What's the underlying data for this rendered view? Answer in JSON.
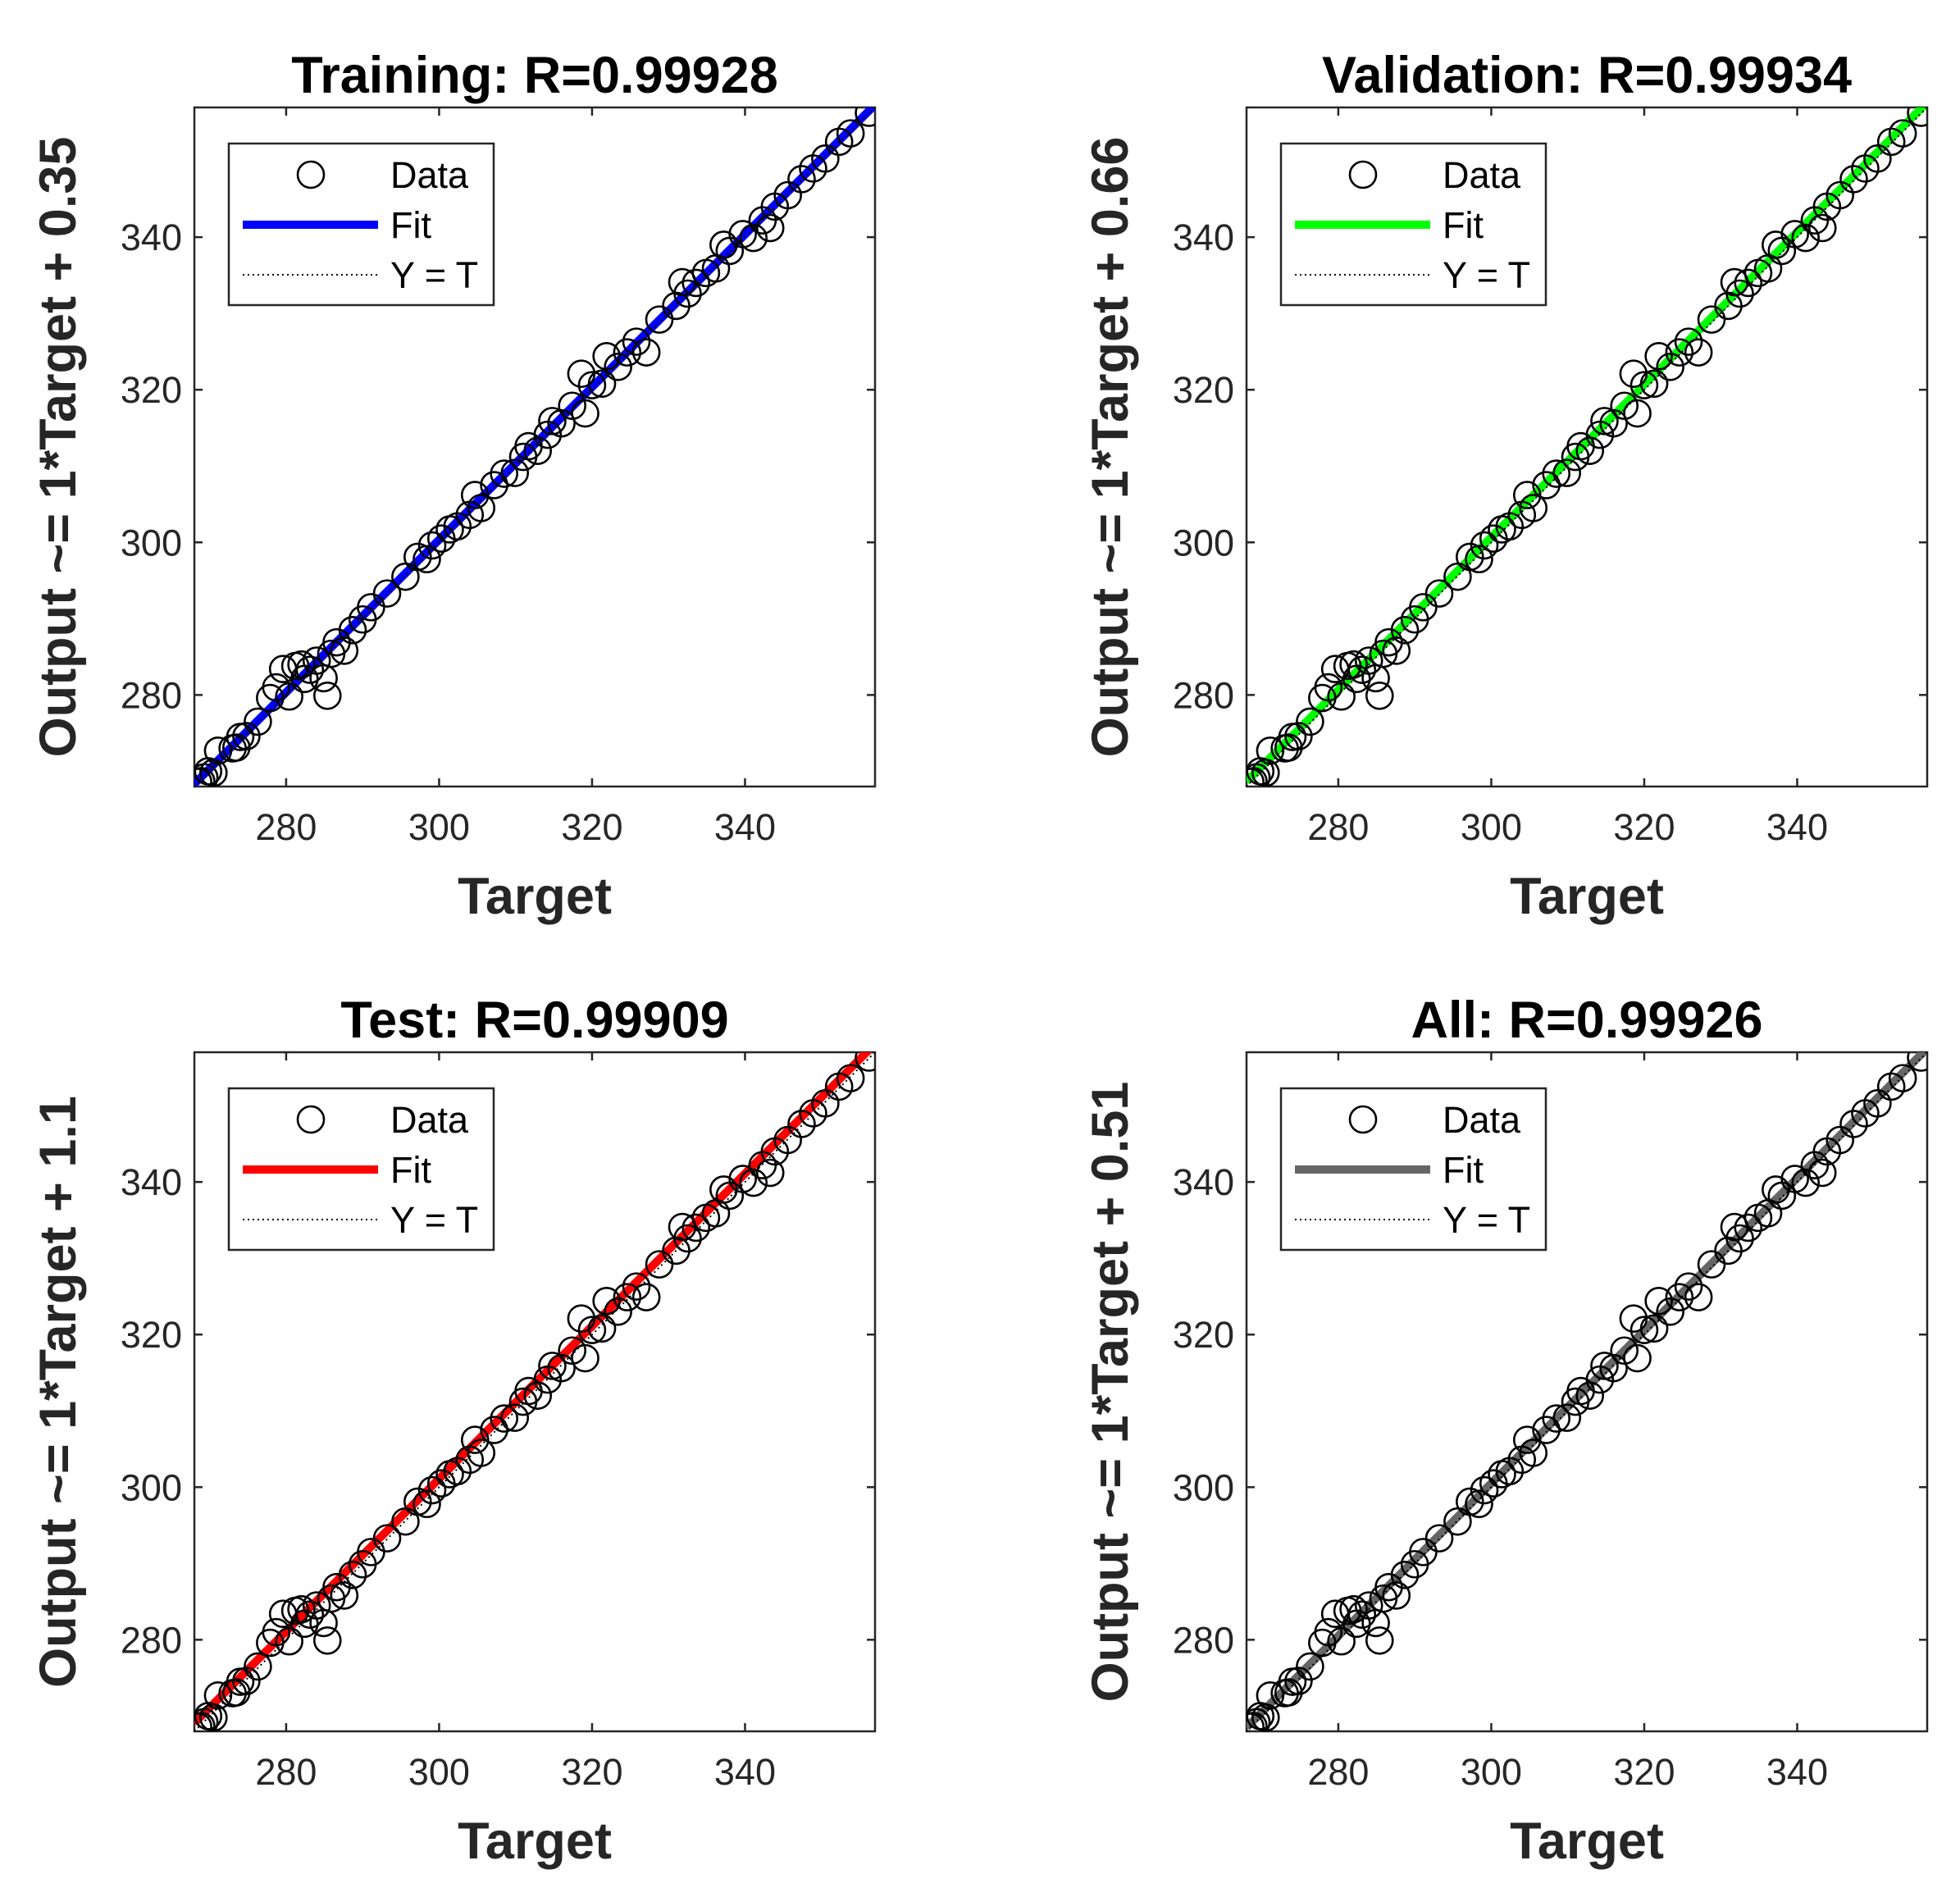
{
  "chart_data": [
    {
      "type": "scatter",
      "title": "Training: R=0.99928",
      "xlabel": "Target",
      "ylabel": "Output ~= 1*Target + 0.35",
      "fit_color": "#0000ff",
      "fit": {
        "slope": 1,
        "intercept": 0.35
      },
      "xlim": [
        268,
        357
      ],
      "ylim": [
        268,
        357
      ],
      "xticks": [
        280,
        300,
        320,
        340
      ],
      "yticks": [
        280,
        300,
        320,
        340
      ],
      "legend": {
        "position": "top-left",
        "entries": [
          "Data",
          "Fit",
          "Y = T"
        ]
      }
    },
    {
      "type": "scatter",
      "title": "Validation: R=0.99934",
      "xlabel": "Target",
      "ylabel": "Output ~= 1*Target + 0.66",
      "fit_color": "#00ff00",
      "fit": {
        "slope": 1,
        "intercept": 0.66
      },
      "xlim": [
        268,
        357
      ],
      "ylim": [
        268,
        357
      ],
      "xticks": [
        280,
        300,
        320,
        340
      ],
      "yticks": [
        280,
        300,
        320,
        340
      ],
      "legend": {
        "position": "top-left",
        "entries": [
          "Data",
          "Fit",
          "Y = T"
        ]
      }
    },
    {
      "type": "scatter",
      "title": "Test: R=0.99909",
      "xlabel": "Target",
      "ylabel": "Output ~= 1*Target + 1.1",
      "fit_color": "#ff0000",
      "fit": {
        "slope": 1,
        "intercept": 1.1
      },
      "xlim": [
        268,
        357
      ],
      "ylim": [
        268,
        357
      ],
      "xticks": [
        280,
        300,
        320,
        340
      ],
      "yticks": [
        280,
        300,
        320,
        340
      ],
      "legend": {
        "position": "top-left",
        "entries": [
          "Data",
          "Fit",
          "Y = T"
        ]
      }
    },
    {
      "type": "scatter",
      "title": "All: R=0.99926",
      "xlabel": "Target",
      "ylabel": "Output ~= 1*Target + 0.51",
      "fit_color": "#666666",
      "fit": {
        "slope": 1,
        "intercept": 0.51
      },
      "xlim": [
        268,
        357
      ],
      "ylim": [
        268,
        357
      ],
      "xticks": [
        280,
        300,
        320,
        340
      ],
      "yticks": [
        280,
        300,
        320,
        340
      ],
      "legend": {
        "position": "top-left",
        "entries": [
          "Data",
          "Fit",
          "Y = T"
        ]
      }
    }
  ],
  "points": [
    [
      268.5,
      268.6
    ],
    [
      268.9,
      268.7
    ],
    [
      269.3,
      269.2
    ],
    [
      269.8,
      270.0
    ],
    [
      270.5,
      269.8
    ],
    [
      271.1,
      272.7
    ],
    [
      273.0,
      273.0
    ],
    [
      273.5,
      273.1
    ],
    [
      274.0,
      274.5
    ],
    [
      274.8,
      274.6
    ],
    [
      276.3,
      276.5
    ],
    [
      277.9,
      279.6
    ],
    [
      278.7,
      281.0
    ],
    [
      279.6,
      283.4
    ],
    [
      280.4,
      279.8
    ],
    [
      281.2,
      283.8
    ],
    [
      282.0,
      284.0
    ],
    [
      282.4,
      282.1
    ],
    [
      283.1,
      283.3
    ],
    [
      284.0,
      284.5
    ],
    [
      284.9,
      282.2
    ],
    [
      285.4,
      279.9
    ],
    [
      285.9,
      285.4
    ],
    [
      286.6,
      286.9
    ],
    [
      287.6,
      285.8
    ],
    [
      288.7,
      288.5
    ],
    [
      290.0,
      289.9
    ],
    [
      291.1,
      291.5
    ],
    [
      293.2,
      293.3
    ],
    [
      295.6,
      295.5
    ],
    [
      297.2,
      298.1
    ],
    [
      298.4,
      297.8
    ],
    [
      299.1,
      299.6
    ],
    [
      300.3,
      300.5
    ],
    [
      301.4,
      301.7
    ],
    [
      302.4,
      302.1
    ],
    [
      304.0,
      303.6
    ],
    [
      304.7,
      306.2
    ],
    [
      305.5,
      304.5
    ],
    [
      307.2,
      307.5
    ],
    [
      308.5,
      309.0
    ],
    [
      309.9,
      309.1
    ],
    [
      311.0,
      311.2
    ],
    [
      311.7,
      312.6
    ],
    [
      312.9,
      312.0
    ],
    [
      314.2,
      314.1
    ],
    [
      314.8,
      315.9
    ],
    [
      316.0,
      315.6
    ],
    [
      317.4,
      317.9
    ],
    [
      318.6,
      322.1
    ],
    [
      319.1,
      316.9
    ],
    [
      320.0,
      320.6
    ],
    [
      321.3,
      320.8
    ],
    [
      321.9,
      324.4
    ],
    [
      323.4,
      323.0
    ],
    [
      324.6,
      324.9
    ],
    [
      325.8,
      326.3
    ],
    [
      327.1,
      324.9
    ],
    [
      328.8,
      329.2
    ],
    [
      331.0,
      331.0
    ],
    [
      331.8,
      334.1
    ],
    [
      332.5,
      332.6
    ],
    [
      333.6,
      334.0
    ],
    [
      334.9,
      335.3
    ],
    [
      336.2,
      335.9
    ],
    [
      337.2,
      339.0
    ],
    [
      338.0,
      338.2
    ],
    [
      339.7,
      340.4
    ],
    [
      341.1,
      339.9
    ],
    [
      342.3,
      342.2
    ],
    [
      343.3,
      341.2
    ],
    [
      343.9,
      344.0
    ],
    [
      345.6,
      345.5
    ],
    [
      347.4,
      347.6
    ],
    [
      348.9,
      349.0
    ],
    [
      350.5,
      350.3
    ],
    [
      352.3,
      352.5
    ],
    [
      353.8,
      353.6
    ],
    [
      356.2,
      356.3
    ]
  ]
}
